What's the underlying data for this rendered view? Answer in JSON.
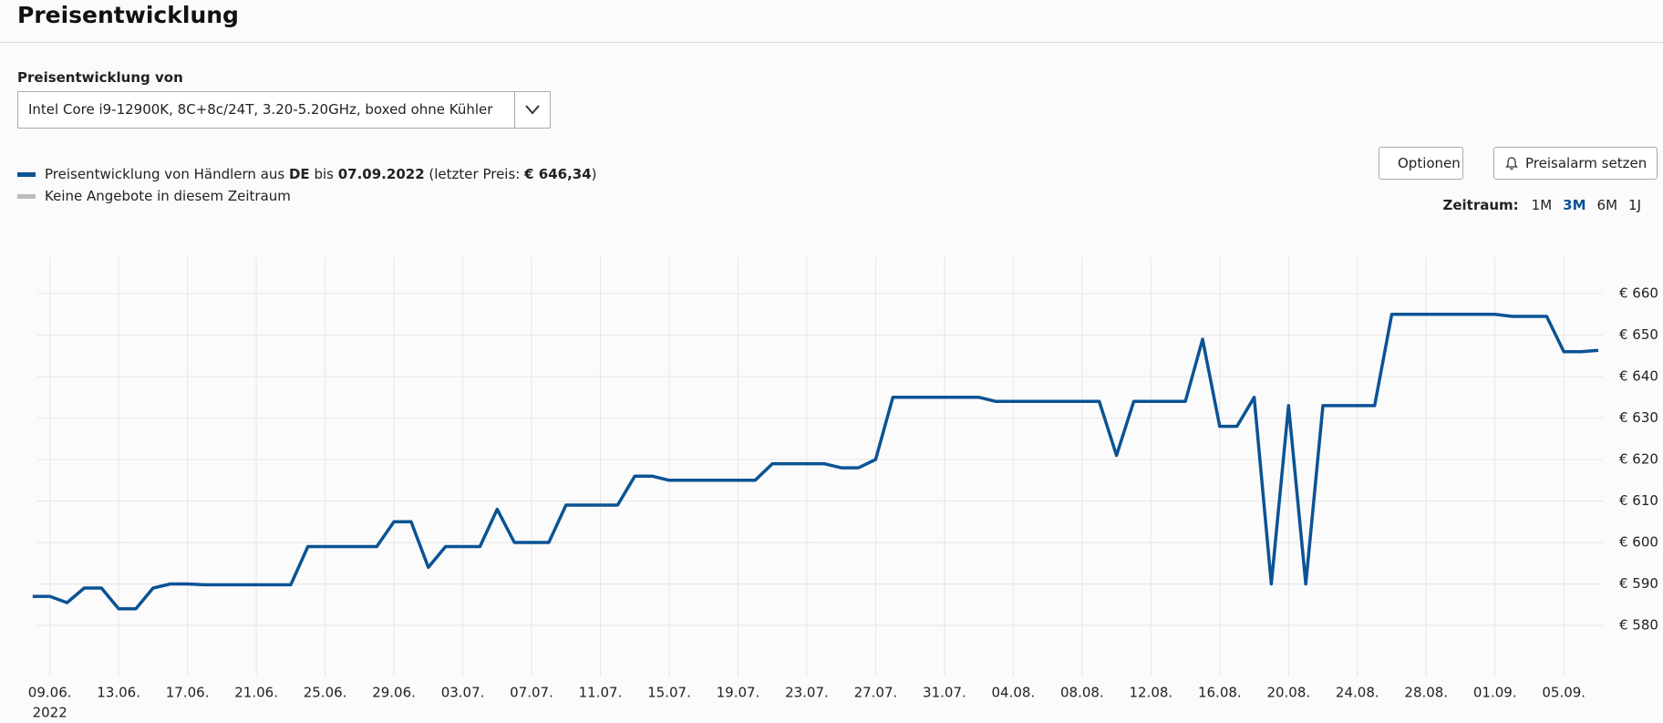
{
  "header": {
    "title": "Preisentwicklung"
  },
  "product_select": {
    "label": "Preisentwicklung von",
    "value": "Intel Core i9-12900K, 8C+8c/24T, 3.20-5.20GHz, boxed ohne Kühler"
  },
  "buttons": {
    "options": "Optionen",
    "price_alert": "Preisalarm setzen"
  },
  "period": {
    "label": "Zeitraum:",
    "options": [
      "1M",
      "3M",
      "6M",
      "1J"
    ],
    "active": 1
  },
  "chart_data": {
    "type": "line",
    "x": [
      "2022-06-08",
      "2022-06-09",
      "2022-06-10",
      "2022-06-11",
      "2022-06-12",
      "2022-06-13",
      "2022-06-14",
      "2022-06-15",
      "2022-06-16",
      "2022-06-17",
      "2022-06-18",
      "2022-06-19",
      "2022-06-20",
      "2022-06-21",
      "2022-06-22",
      "2022-06-23",
      "2022-06-24",
      "2022-06-25",
      "2022-06-26",
      "2022-06-27",
      "2022-06-28",
      "2022-06-29",
      "2022-06-30",
      "2022-07-01",
      "2022-07-02",
      "2022-07-03",
      "2022-07-04",
      "2022-07-05",
      "2022-07-06",
      "2022-07-07",
      "2022-07-08",
      "2022-07-09",
      "2022-07-10",
      "2022-07-11",
      "2022-07-12",
      "2022-07-13",
      "2022-07-14",
      "2022-07-15",
      "2022-07-16",
      "2022-07-17",
      "2022-07-18",
      "2022-07-19",
      "2022-07-20",
      "2022-07-21",
      "2022-07-22",
      "2022-07-23",
      "2022-07-24",
      "2022-07-25",
      "2022-07-26",
      "2022-07-27",
      "2022-07-28",
      "2022-07-29",
      "2022-07-30",
      "2022-07-31",
      "2022-08-01",
      "2022-08-02",
      "2022-08-03",
      "2022-08-04",
      "2022-08-05",
      "2022-08-06",
      "2022-08-07",
      "2022-08-08",
      "2022-08-09",
      "2022-08-10",
      "2022-08-11",
      "2022-08-12",
      "2022-08-13",
      "2022-08-14",
      "2022-08-15",
      "2022-08-16",
      "2022-08-17",
      "2022-08-18",
      "2022-08-19",
      "2022-08-20",
      "2022-08-21",
      "2022-08-22",
      "2022-08-23",
      "2022-08-24",
      "2022-08-25",
      "2022-08-26",
      "2022-08-27",
      "2022-08-28",
      "2022-08-29",
      "2022-08-30",
      "2022-08-31",
      "2022-09-01",
      "2022-09-02",
      "2022-09-03",
      "2022-09-04",
      "2022-09-05",
      "2022-09-06",
      "2022-09-07"
    ],
    "series": [
      {
        "name_parts": [
          {
            "text": "Preisentwicklung von Händlern aus ",
            "bold": false
          },
          {
            "text": "DE",
            "bold": true
          },
          {
            "text": " bis ",
            "bold": false
          },
          {
            "text": "07.09.2022",
            "bold": true
          },
          {
            "text": " (letzter Preis: ",
            "bold": false
          },
          {
            "text": "€ 646,34",
            "bold": true
          },
          {
            "text": ")",
            "bold": false
          }
        ],
        "color": "#0b5394",
        "values": [
          587,
          587,
          585.5,
          589,
          589,
          584,
          584,
          589,
          590,
          590,
          589.8,
          589.8,
          589.8,
          589.8,
          589.8,
          589.8,
          599,
          599,
          599,
          599,
          599,
          605,
          605,
          594,
          599,
          599,
          599,
          608,
          600,
          600,
          600,
          609,
          609,
          609,
          609,
          616,
          616,
          615,
          615,
          615,
          615,
          615,
          615,
          619,
          619,
          619,
          619,
          618,
          618,
          620,
          635,
          635,
          635,
          635,
          635,
          635,
          634,
          634,
          634,
          634,
          634,
          634,
          634,
          621,
          634,
          634,
          634,
          634,
          649,
          628,
          628,
          635,
          590,
          633,
          590,
          633,
          633,
          633,
          633,
          655,
          655,
          655,
          655,
          655,
          655,
          655,
          654.5,
          654.5,
          654.5,
          646,
          646,
          646.34
        ]
      }
    ],
    "legend_extra": {
      "label": "Keine Angebote in diesem Zeitraum",
      "color": "#bbbbbb"
    },
    "ylim": [
      571,
      669
    ],
    "yticks": [
      {
        "value": 580,
        "label": "€ 580"
      },
      {
        "value": 590,
        "label": "€ 590"
      },
      {
        "value": 600,
        "label": "€ 600"
      },
      {
        "value": 610,
        "label": "€ 610"
      },
      {
        "value": 620,
        "label": "€ 620"
      },
      {
        "value": 630,
        "label": "€ 630"
      },
      {
        "value": 640,
        "label": "€ 640"
      },
      {
        "value": 650,
        "label": "€ 650"
      },
      {
        "value": 660,
        "label": "€ 660"
      }
    ],
    "xticks": [
      {
        "value": "2022-06-09",
        "label": "09.06."
      },
      {
        "value": "2022-06-13",
        "label": "13.06."
      },
      {
        "value": "2022-06-17",
        "label": "17.06."
      },
      {
        "value": "2022-06-21",
        "label": "21.06."
      },
      {
        "value": "2022-06-25",
        "label": "25.06."
      },
      {
        "value": "2022-06-29",
        "label": "29.06."
      },
      {
        "value": "2022-07-03",
        "label": "03.07."
      },
      {
        "value": "2022-07-07",
        "label": "07.07."
      },
      {
        "value": "2022-07-11",
        "label": "11.07."
      },
      {
        "value": "2022-07-15",
        "label": "15.07."
      },
      {
        "value": "2022-07-19",
        "label": "19.07."
      },
      {
        "value": "2022-07-23",
        "label": "23.07."
      },
      {
        "value": "2022-07-27",
        "label": "27.07."
      },
      {
        "value": "2022-07-31",
        "label": "31.07."
      },
      {
        "value": "2022-08-04",
        "label": "04.08."
      },
      {
        "value": "2022-08-08",
        "label": "08.08."
      },
      {
        "value": "2022-08-12",
        "label": "12.08."
      },
      {
        "value": "2022-08-16",
        "label": "16.08."
      },
      {
        "value": "2022-08-20",
        "label": "20.08."
      },
      {
        "value": "2022-08-24",
        "label": "24.08."
      },
      {
        "value": "2022-08-28",
        "label": "28.08."
      },
      {
        "value": "2022-09-01",
        "label": "01.09."
      },
      {
        "value": "2022-09-05",
        "label": "05.09."
      }
    ],
    "x_year_label": "2022",
    "grid": true
  }
}
